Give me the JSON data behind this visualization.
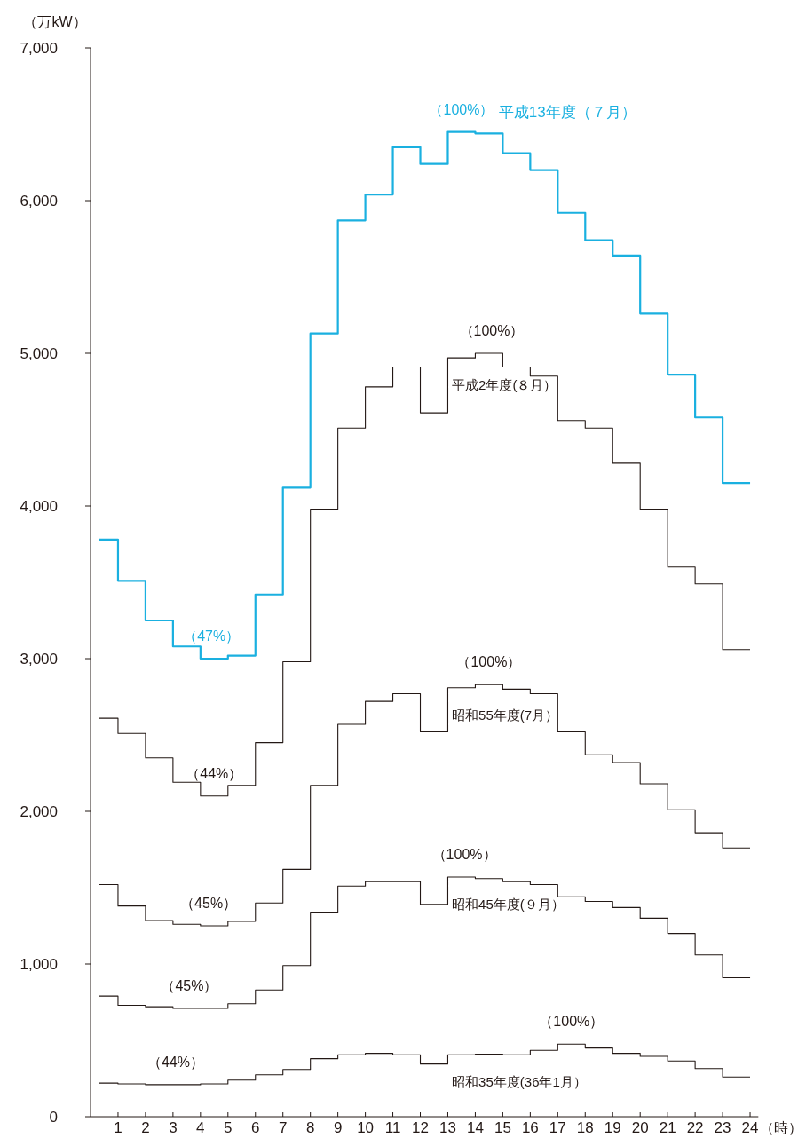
{
  "chart_data": {
    "type": "step",
    "xlabel": "（時）",
    "ylabel": "（万kW）",
    "x": [
      0.3,
      1,
      2,
      3,
      4,
      5,
      6,
      7,
      8,
      9,
      10,
      11,
      12,
      13,
      14,
      15,
      16,
      17,
      18,
      19,
      20,
      21,
      22,
      23,
      24
    ],
    "xlim": [
      0,
      24.3
    ],
    "xticks": [
      1,
      2,
      3,
      4,
      5,
      6,
      7,
      8,
      9,
      10,
      11,
      12,
      13,
      14,
      15,
      16,
      17,
      18,
      19,
      20,
      21,
      22,
      23,
      24
    ],
    "ylim": [
      0,
      7000
    ],
    "yticks": [
      {
        "value": 0,
        "label": "0"
      },
      {
        "value": 1000,
        "label": "1,000"
      },
      {
        "value": 2000,
        "label": "2,000"
      },
      {
        "value": 3000,
        "label": "3,000"
      },
      {
        "value": 4000,
        "label": "4,000"
      },
      {
        "value": 5000,
        "label": "5,000"
      },
      {
        "value": 6000,
        "label": "6,000"
      },
      {
        "value": 7000,
        "label": "7,000"
      }
    ],
    "grid": false,
    "legend": false,
    "marker": "none",
    "line_style": "solid",
    "series": [
      {
        "name": "平成13年度（７月）",
        "color": "#1ab0e0",
        "values": [
          3780,
          3510,
          3250,
          3080,
          3000,
          3020,
          3420,
          4120,
          5130,
          5870,
          6040,
          6350,
          6240,
          6450,
          6440,
          6310,
          6200,
          5920,
          5740,
          5640,
          5260,
          4860,
          4580,
          4150,
          4150
        ]
      },
      {
        "name": "平成2年度(８月）",
        "color": "#231815",
        "values": [
          2610,
          2510,
          2350,
          2190,
          2100,
          2170,
          2450,
          2980,
          3980,
          4510,
          4780,
          4910,
          4610,
          4970,
          5000,
          4910,
          4850,
          4560,
          4510,
          4280,
          3980,
          3600,
          3490,
          3060,
          3060
        ]
      },
      {
        "name": "昭和55年度(7月）",
        "color": "#231815",
        "values": [
          1520,
          1380,
          1285,
          1260,
          1250,
          1280,
          1400,
          1620,
          2170,
          2570,
          2720,
          2770,
          2520,
          2810,
          2830,
          2800,
          2770,
          2520,
          2370,
          2320,
          2180,
          2010,
          1860,
          1760,
          1760
        ]
      },
      {
        "name": "昭和45年度(９月）",
        "color": "#231815",
        "values": [
          790,
          730,
          720,
          710,
          710,
          740,
          830,
          990,
          1340,
          1510,
          1540,
          1540,
          1390,
          1570,
          1560,
          1540,
          1520,
          1440,
          1410,
          1370,
          1300,
          1200,
          1060,
          910,
          910
        ]
      },
      {
        "name": "昭和35年度(36年1月）",
        "color": "#231815",
        "values": [
          220,
          215,
          210,
          210,
          215,
          240,
          275,
          310,
          380,
          405,
          415,
          405,
          345,
          405,
          410,
          405,
          435,
          475,
          450,
          415,
          395,
          365,
          315,
          260,
          260
        ]
      }
    ],
    "annotations": [
      {
        "text": "（100%）",
        "x": 13.5,
        "y": 6450
      },
      {
        "text": "（47%）",
        "x": 4.4,
        "y": 3000
      },
      {
        "text": "（100%）",
        "x": 14.6,
        "y": 5000
      },
      {
        "text": "（44%）",
        "x": 4.5,
        "y": 2100
      },
      {
        "text": "（100%）",
        "x": 14.5,
        "y": 2830
      },
      {
        "text": "（45%）",
        "x": 4.3,
        "y": 1250
      },
      {
        "text": "（100%）",
        "x": 13.6,
        "y": 1570
      },
      {
        "text": "（45%）",
        "x": 3.6,
        "y": 710
      },
      {
        "text": "（100%）",
        "x": 17.5,
        "y": 475
      },
      {
        "text": "（44%）",
        "x": 3.1,
        "y": 210
      }
    ]
  }
}
